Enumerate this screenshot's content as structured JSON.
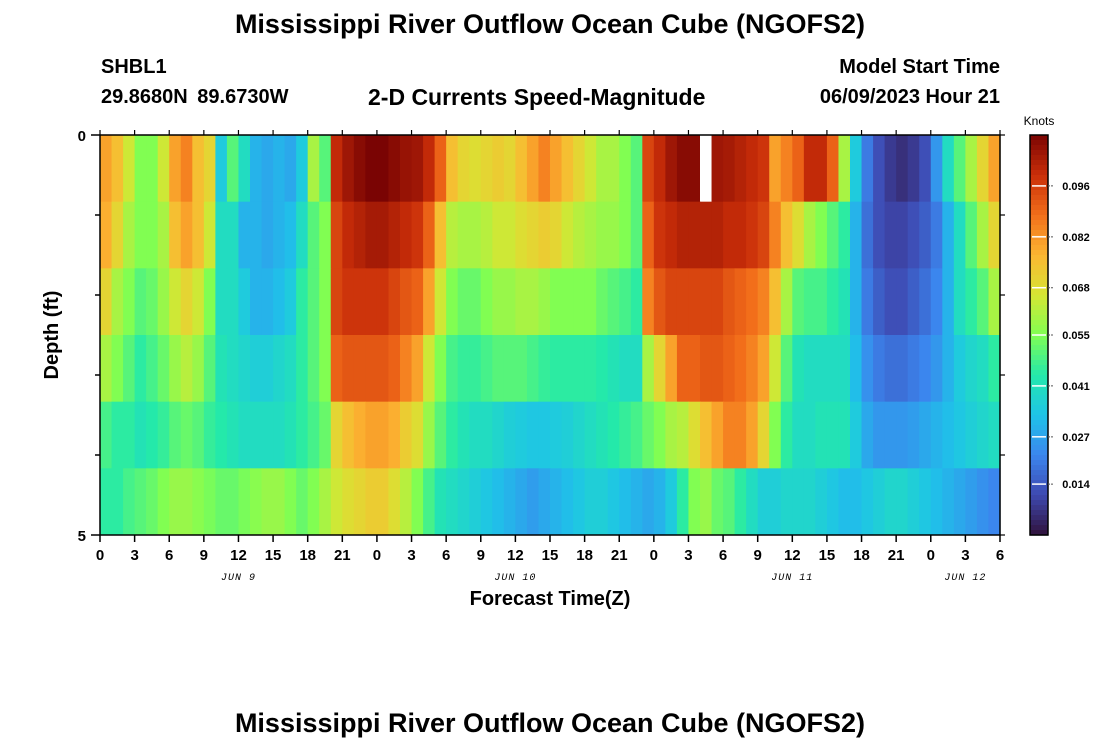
{
  "header": {
    "title": "Mississippi River Outflow Ocean Cube (NGOFS2)",
    "station": "SHBL1",
    "coordinates": "29.8680N  89.6730W",
    "variable": "2-D Currents Speed-Magnitude",
    "model_start_label": "Model Start Time",
    "model_start_value": "06/09/2023 Hour 21"
  },
  "footer": {
    "title": "Mississippi River Outflow Ocean Cube (NGOFS2)"
  },
  "chart_data": {
    "type": "heatmap",
    "title": "2-D Currents Speed-Magnitude",
    "xlabel": "Forecast Time(Z)",
    "ylabel": "Depth (ft)",
    "x_tick_labels": [
      "0",
      "3",
      "6",
      "9",
      "12",
      "15",
      "18",
      "21",
      "0",
      "3",
      "6",
      "9",
      "12",
      "15",
      "18",
      "21",
      "0",
      "3",
      "6",
      "9",
      "12",
      "15",
      "18",
      "21",
      "0",
      "3",
      "6"
    ],
    "x_day_labels": [
      {
        "label": "JUN 9",
        "at_hour": 12
      },
      {
        "label": "JUN 10",
        "at_hour": 36
      },
      {
        "label": "JUN 11",
        "at_hour": 60
      },
      {
        "label": "JUN 12",
        "at_hour": 75
      }
    ],
    "x_range_hours": [
      0,
      78
    ],
    "y_tick_labels": [
      "0",
      "5"
    ],
    "ylim": [
      0,
      5
    ],
    "colorbar": {
      "label": "Knots",
      "ticks": [
        "0.096",
        "0.082",
        "0.068",
        "0.055",
        "0.041",
        "0.027",
        "0.014"
      ],
      "range": [
        0.0,
        0.11
      ]
    },
    "depth_layers": 6,
    "hourly_values_by_layer": [
      [
        0.08,
        0.075,
        0.065,
        0.055,
        0.055,
        0.065,
        0.08,
        0.085,
        0.075,
        0.07,
        0.035,
        0.05,
        0.04,
        0.03,
        0.028,
        0.03,
        0.028,
        0.035,
        0.06,
        0.05,
        0.1,
        0.105,
        0.108,
        0.11,
        0.11,
        0.108,
        0.106,
        0.105,
        0.1,
        0.09,
        0.075,
        0.07,
        0.068,
        0.07,
        0.072,
        0.07,
        0.075,
        0.08,
        0.085,
        0.08,
        0.075,
        0.07,
        0.065,
        0.06,
        0.06,
        0.055,
        0.05,
        0.095,
        0.1,
        0.105,
        0.108,
        0.108,
        null,
        0.105,
        0.104,
        0.102,
        0.1,
        0.098,
        0.08,
        0.085,
        0.09,
        0.1,
        0.1,
        0.09,
        0.06,
        0.035,
        0.02,
        0.012,
        0.008,
        0.006,
        0.008,
        0.012,
        0.025,
        0.04,
        0.05,
        0.06,
        0.07,
        0.08
      ],
      [
        0.078,
        0.07,
        0.06,
        0.055,
        0.055,
        0.06,
        0.075,
        0.08,
        0.075,
        0.065,
        0.04,
        0.04,
        0.03,
        0.03,
        0.028,
        0.03,
        0.032,
        0.04,
        0.05,
        0.055,
        0.095,
        0.1,
        0.102,
        0.104,
        0.104,
        0.102,
        0.1,
        0.098,
        0.09,
        0.075,
        0.062,
        0.06,
        0.06,
        0.062,
        0.065,
        0.065,
        0.068,
        0.07,
        0.072,
        0.07,
        0.065,
        0.062,
        0.06,
        0.058,
        0.058,
        0.055,
        0.05,
        0.09,
        0.098,
        0.1,
        0.102,
        0.102,
        0.102,
        0.102,
        0.1,
        0.1,
        0.098,
        0.095,
        0.085,
        0.075,
        0.068,
        0.06,
        0.055,
        0.05,
        0.045,
        0.03,
        0.018,
        0.012,
        0.01,
        0.01,
        0.012,
        0.015,
        0.02,
        0.03,
        0.04,
        0.05,
        0.06,
        0.07
      ],
      [
        0.07,
        0.06,
        0.055,
        0.05,
        0.052,
        0.058,
        0.065,
        0.07,
        0.065,
        0.055,
        0.04,
        0.04,
        0.035,
        0.03,
        0.03,
        0.032,
        0.035,
        0.045,
        0.05,
        0.055,
        0.095,
        0.098,
        0.098,
        0.098,
        0.098,
        0.095,
        0.092,
        0.09,
        0.08,
        0.065,
        0.055,
        0.052,
        0.052,
        0.055,
        0.058,
        0.058,
        0.06,
        0.06,
        0.058,
        0.055,
        0.055,
        0.055,
        0.055,
        0.052,
        0.05,
        0.048,
        0.045,
        0.085,
        0.092,
        0.095,
        0.095,
        0.095,
        0.095,
        0.095,
        0.092,
        0.09,
        0.088,
        0.085,
        0.075,
        0.06,
        0.05,
        0.048,
        0.048,
        0.045,
        0.042,
        0.03,
        0.02,
        0.015,
        0.012,
        0.012,
        0.015,
        0.018,
        0.022,
        0.03,
        0.04,
        0.045,
        0.05,
        0.06
      ],
      [
        0.06,
        0.055,
        0.05,
        0.045,
        0.048,
        0.052,
        0.058,
        0.062,
        0.058,
        0.05,
        0.042,
        0.04,
        0.038,
        0.036,
        0.036,
        0.038,
        0.04,
        0.045,
        0.05,
        0.055,
        0.09,
        0.092,
        0.092,
        0.092,
        0.092,
        0.09,
        0.085,
        0.08,
        0.065,
        0.055,
        0.048,
        0.046,
        0.046,
        0.048,
        0.05,
        0.05,
        0.05,
        0.048,
        0.046,
        0.045,
        0.045,
        0.045,
        0.045,
        0.044,
        0.042,
        0.04,
        0.04,
        0.06,
        0.07,
        0.08,
        0.09,
        0.09,
        0.092,
        0.092,
        0.09,
        0.088,
        0.085,
        0.08,
        0.065,
        0.05,
        0.042,
        0.04,
        0.04,
        0.04,
        0.04,
        0.032,
        0.024,
        0.02,
        0.018,
        0.018,
        0.02,
        0.022,
        0.025,
        0.03,
        0.035,
        0.038,
        0.04,
        0.045
      ],
      [
        0.048,
        0.045,
        0.045,
        0.042,
        0.044,
        0.046,
        0.05,
        0.052,
        0.05,
        0.046,
        0.044,
        0.042,
        0.04,
        0.04,
        0.04,
        0.04,
        0.042,
        0.045,
        0.048,
        0.052,
        0.07,
        0.075,
        0.078,
        0.08,
        0.08,
        0.078,
        0.072,
        0.068,
        0.058,
        0.05,
        0.045,
        0.042,
        0.04,
        0.04,
        0.038,
        0.036,
        0.035,
        0.034,
        0.034,
        0.035,
        0.036,
        0.038,
        0.04,
        0.042,
        0.044,
        0.046,
        0.048,
        0.052,
        0.055,
        0.06,
        0.062,
        0.068,
        0.075,
        0.08,
        0.085,
        0.085,
        0.08,
        0.07,
        0.055,
        0.045,
        0.04,
        0.04,
        0.042,
        0.042,
        0.042,
        0.035,
        0.028,
        0.025,
        0.025,
        0.025,
        0.026,
        0.028,
        0.03,
        0.032,
        0.034,
        0.036,
        0.038,
        0.04
      ],
      [
        0.045,
        0.045,
        0.048,
        0.05,
        0.052,
        0.055,
        0.058,
        0.058,
        0.056,
        0.054,
        0.052,
        0.052,
        0.054,
        0.056,
        0.058,
        0.058,
        0.055,
        0.052,
        0.055,
        0.06,
        0.065,
        0.068,
        0.07,
        0.072,
        0.072,
        0.068,
        0.062,
        0.055,
        0.048,
        0.042,
        0.04,
        0.038,
        0.036,
        0.034,
        0.032,
        0.03,
        0.028,
        0.026,
        0.028,
        0.03,
        0.032,
        0.034,
        0.036,
        0.036,
        0.034,
        0.032,
        0.03,
        0.028,
        0.03,
        0.035,
        0.045,
        0.055,
        0.058,
        0.052,
        0.05,
        0.045,
        0.04,
        0.036,
        0.036,
        0.038,
        0.038,
        0.038,
        0.036,
        0.034,
        0.032,
        0.032,
        0.034,
        0.036,
        0.038,
        0.038,
        0.036,
        0.034,
        0.032,
        0.03,
        0.028,
        0.026,
        0.024,
        0.022
      ]
    ]
  }
}
